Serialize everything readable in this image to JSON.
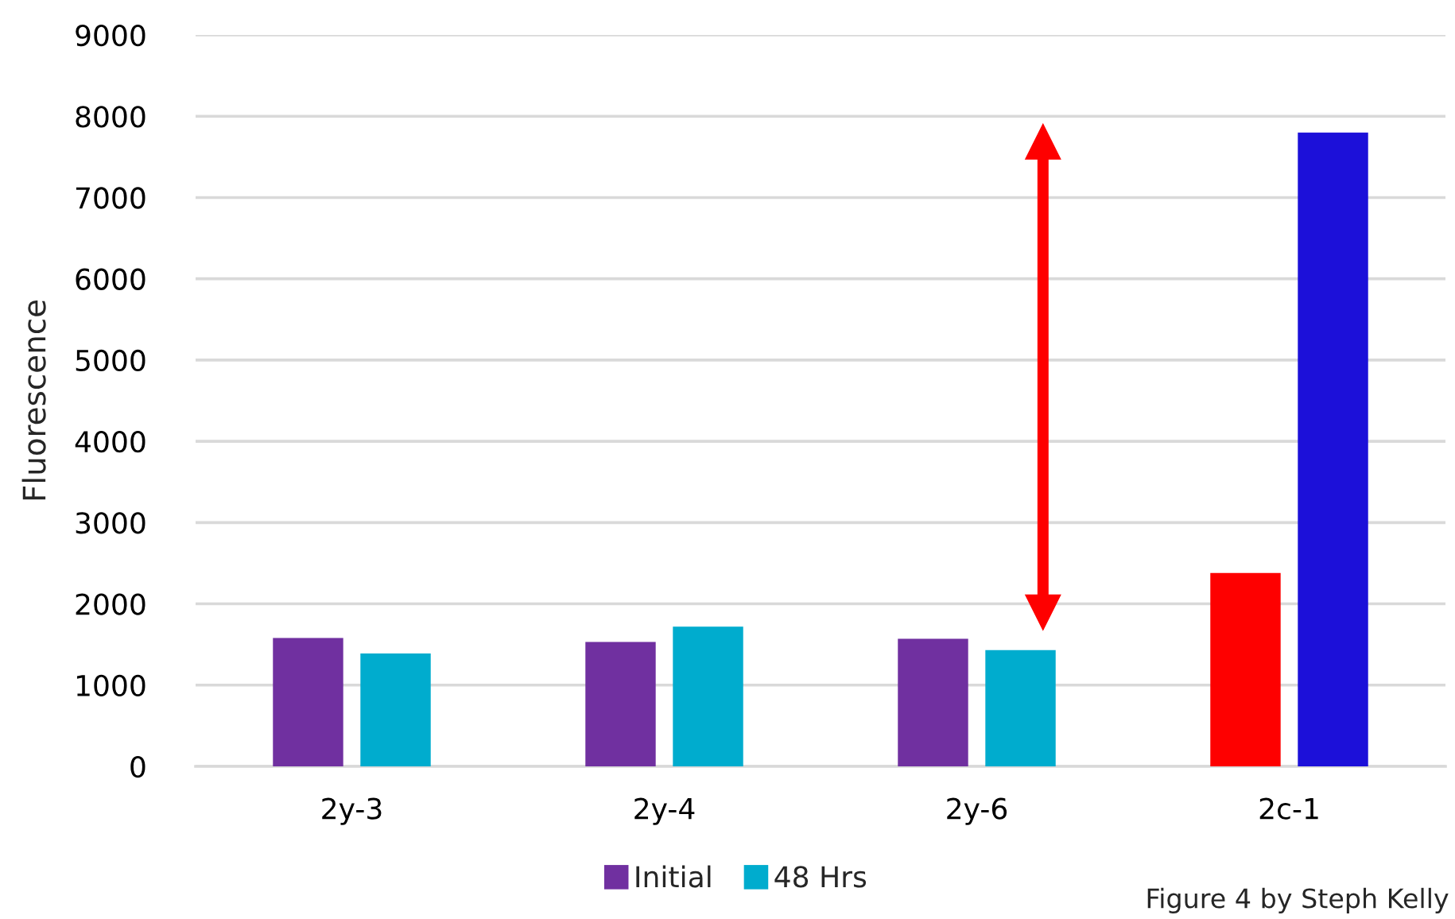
{
  "chart_data": {
    "type": "bar",
    "ylabel": "Fluorescence",
    "categories": [
      "2y-3",
      "2y-4",
      "2y-6",
      "2c-1"
    ],
    "series": [
      {
        "name": "Initial",
        "color": "#7030a0",
        "colors": [
          "#7030a0",
          "#7030a0",
          "#7030a0",
          "#fe0000"
        ],
        "values": [
          1580,
          1530,
          1570,
          2380
        ]
      },
      {
        "name": "48 Hrs",
        "color": "#00acce",
        "colors": [
          "#00acce",
          "#00acce",
          "#00acce",
          "#1c10d9"
        ],
        "values": [
          1390,
          1720,
          1430,
          7800
        ]
      }
    ],
    "ylim": [
      0,
      9000
    ],
    "yticks": [
      0,
      1000,
      2000,
      3000,
      4000,
      5000,
      6000,
      7000,
      8000,
      9000
    ],
    "grid": "y",
    "legend": "bottom",
    "annotations": [
      "Figure 4 by Steph Kelly"
    ]
  }
}
